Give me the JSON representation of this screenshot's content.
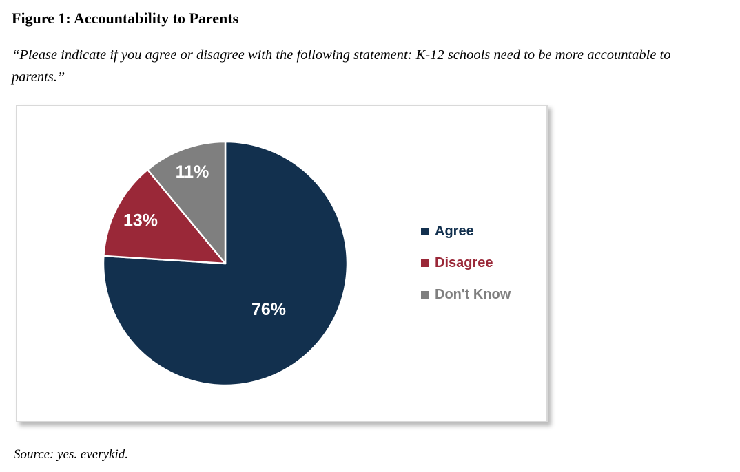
{
  "header": {
    "title": "Figure 1: Accountability to Parents",
    "quote": "“Please indicate if you agree or disagree with the following statement: K-12 schools need to be more accountable to parents.”"
  },
  "source_line": "Source: yes. everykid.",
  "chart_data": {
    "type": "pie",
    "title": "",
    "unit": "percent",
    "start_angle_deg": 0,
    "direction": "clockwise",
    "legend_position": "right",
    "categories": [
      "Agree",
      "Disagree",
      "Don't Know"
    ],
    "values": [
      76,
      13,
      11
    ],
    "slices": [
      {
        "label": "Agree",
        "value": 76,
        "display": "76%",
        "color": "#12304E",
        "label_radius": 0.52
      },
      {
        "label": "Disagree",
        "value": 13,
        "display": "13%",
        "color": "#9A2838",
        "label_radius": 0.78
      },
      {
        "label": "Don't Know",
        "value": 11,
        "display": "11%",
        "color": "#7F7F7F",
        "label_radius": 0.8
      }
    ],
    "data_label_color": "#FFFFFF",
    "slice_border_color": "#FFFFFF"
  }
}
